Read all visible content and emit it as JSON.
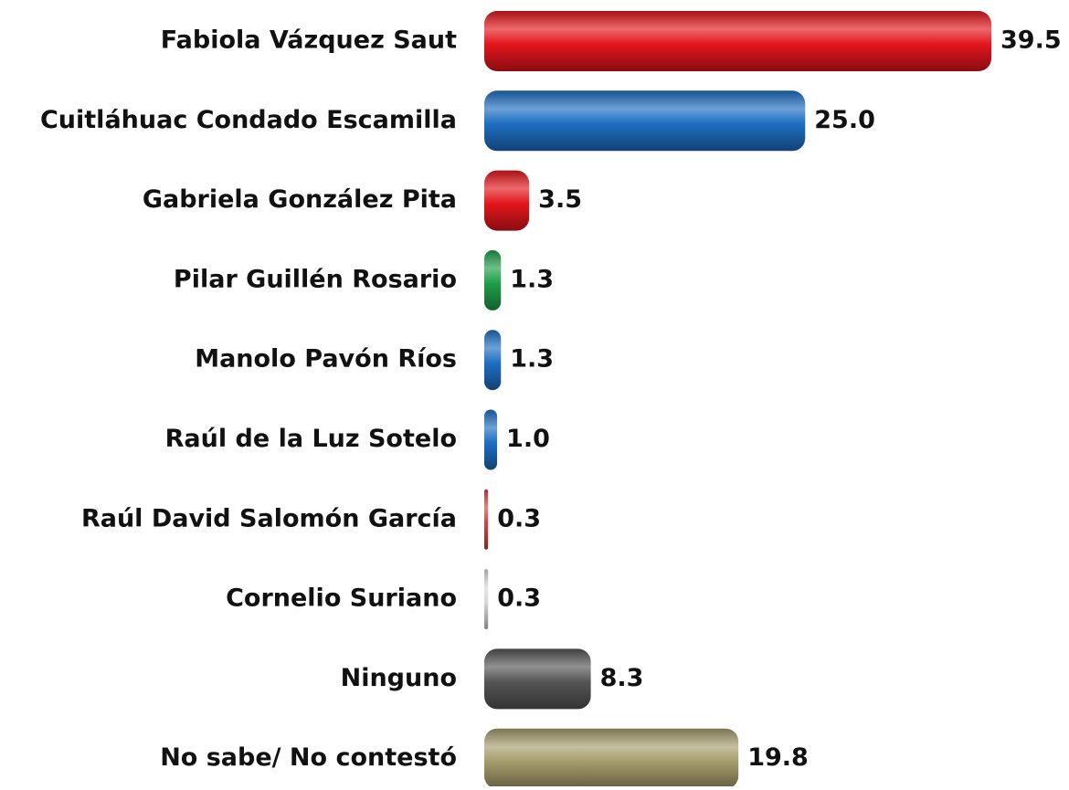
{
  "chart_data": {
    "type": "bar",
    "orientation": "horizontal",
    "categories": [
      "Fabiola Vázquez Saut",
      "Cuitláhuac Condado Escamilla",
      "Gabriela González Pita",
      "Pilar Guillén Rosario",
      "Manolo Pavón Ríos",
      "Raúl de la Luz Sotelo",
      "Raúl David Salomón García",
      "Cornelio Suriano",
      "Ninguno",
      "No sabe/ No contestó"
    ],
    "values": [
      39.5,
      25.0,
      3.5,
      1.3,
      1.3,
      1.0,
      0.3,
      0.3,
      8.3,
      19.8
    ],
    "value_labels": [
      "39.5",
      "25.0",
      "3.5",
      "1.3",
      "1.3",
      "1.0",
      "0.3",
      "0.3",
      "8.3",
      "19.8"
    ],
    "colors": [
      "#e3161c",
      "#1e6ec2",
      "#e3161c",
      "#1f9e49",
      "#1e6ec2",
      "#1e6ec2",
      "#c94848",
      "#d8d8d8",
      "#555555",
      "#a59c6c"
    ]
  }
}
